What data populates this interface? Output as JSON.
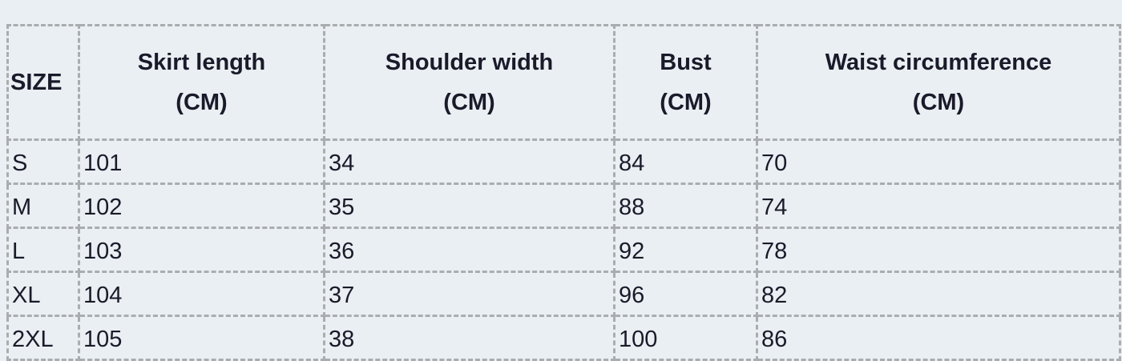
{
  "table": {
    "headers": [
      {
        "line1": "SIZE",
        "line2": ""
      },
      {
        "line1": "Skirt length",
        "line2": "(CM)"
      },
      {
        "line1": "Shoulder width",
        "line2": "(CM)"
      },
      {
        "line1": "Bust",
        "line2": "(CM)"
      },
      {
        "line1": "Waist circumference",
        "line2": "(CM)"
      }
    ],
    "rows": [
      [
        "S",
        "101",
        "34",
        "84",
        "70"
      ],
      [
        "M",
        "102",
        "35",
        "88",
        "74"
      ],
      [
        "L",
        "103",
        "36",
        "92",
        "78"
      ],
      [
        "XL",
        "104",
        "37",
        "96",
        "82"
      ],
      [
        "2XL",
        "105",
        "38",
        "100",
        "86"
      ]
    ]
  }
}
